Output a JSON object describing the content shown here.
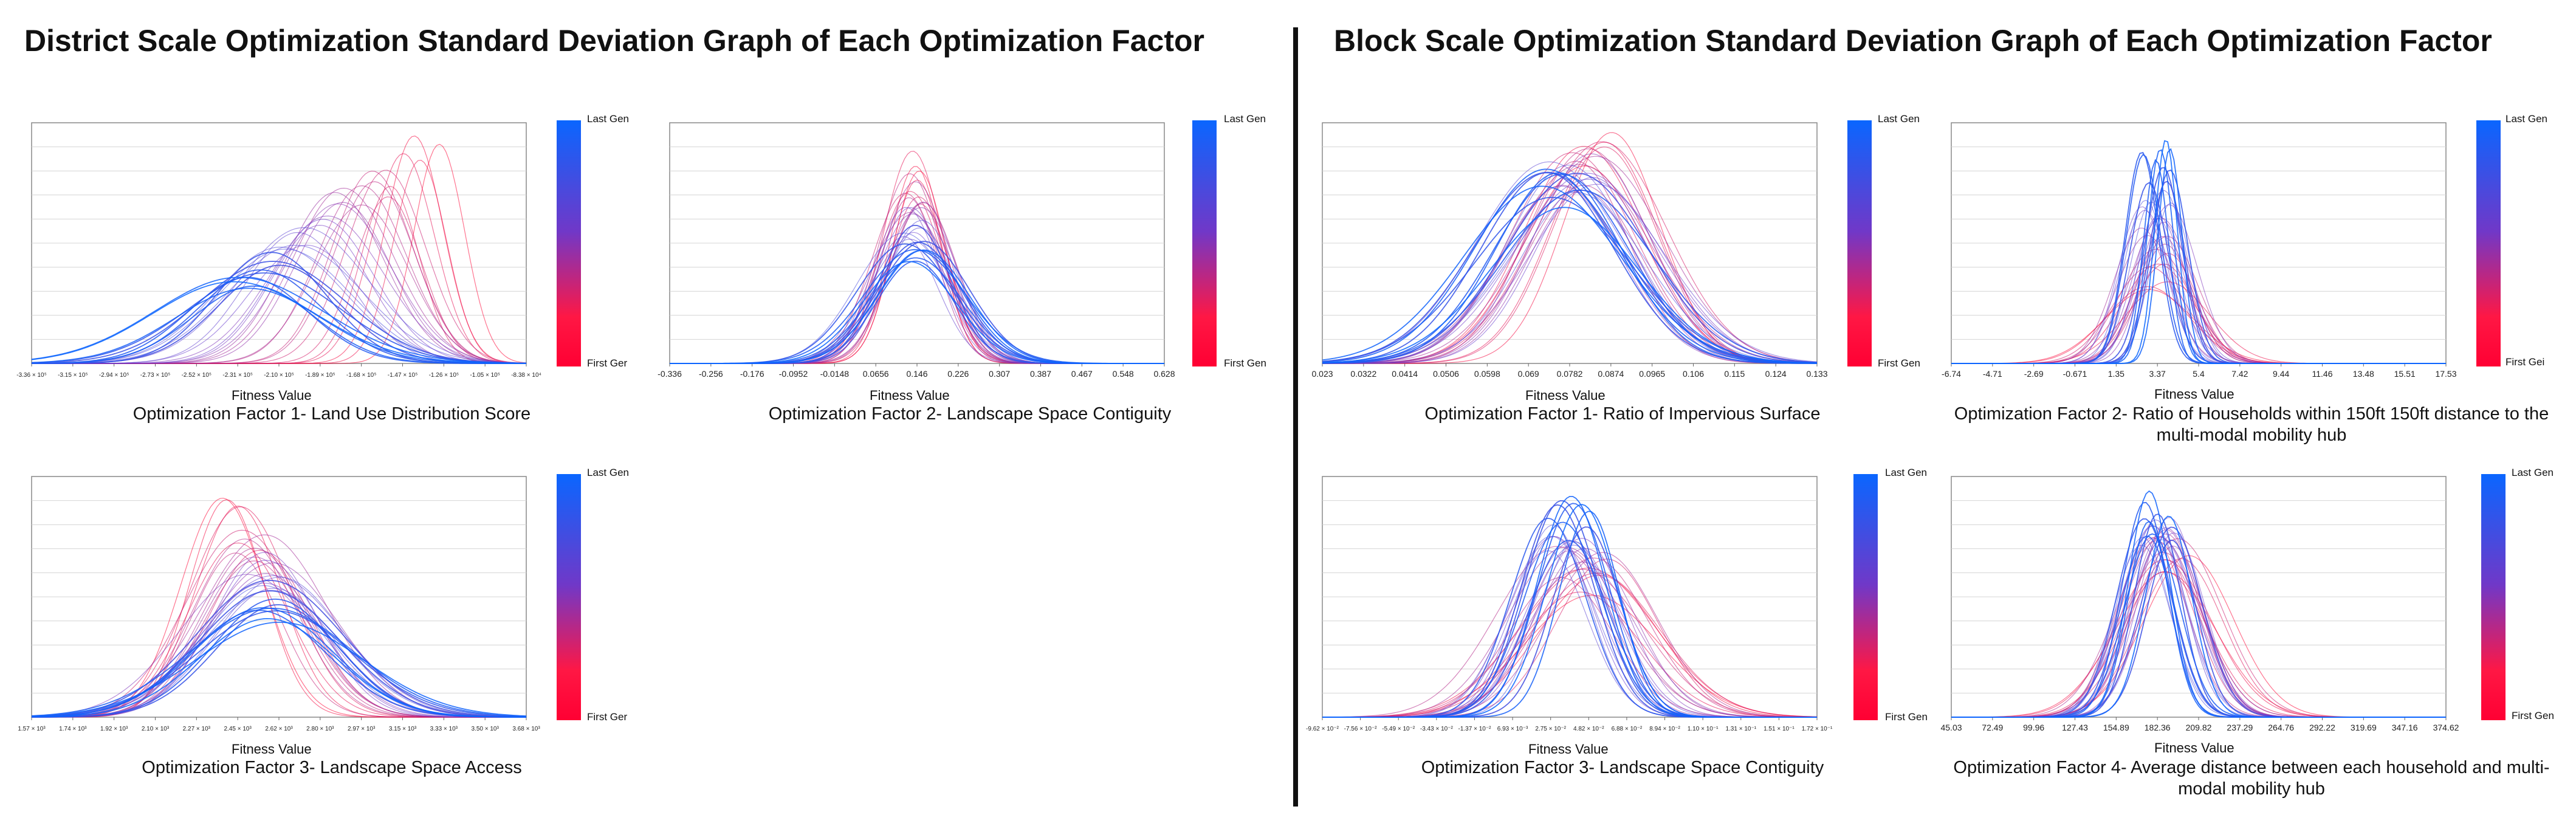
{
  "titles": {
    "left": "District Scale Optimization Standard Deviation Graph of Each Optimization Factor",
    "right": "Block Scale Optimization Standard Deviation Graph of Each Optimization Factor"
  },
  "colorbar": {
    "top": "Last Gen",
    "bottom": "First Gen",
    "bottom_cut": "First Ger",
    "bottom_cut2": "First Gei",
    "colors": [
      "#0a66ff",
      "#7038c8",
      "#ff0033"
    ]
  },
  "chart_data": [
    {
      "type": "line",
      "id": "d1",
      "caption": "Optimization Factor 1- Land Use Distribution Score",
      "xlabel": "Fitness Value",
      "xticks": [
        "-3.36 × 10⁵",
        "-3.15 × 10⁵",
        "-2.94 × 10⁵",
        "-2.73 × 10⁵",
        "-2.52 × 10⁵",
        "-2.31 × 10⁵",
        "-2.10 × 10⁵",
        "-1.89 × 10⁵",
        "-1.68 × 10⁵",
        "-1.47 × 10⁵",
        "-1.26 × 10⁵",
        "-1.05 × 10⁵",
        "-8.38 × 10⁴"
      ],
      "xlim": [
        -3.36,
        -0.838
      ],
      "series_summary": "Normal-distribution density curves per generation; first gen (red) peaked near -1.2e5, last gen (blue) centered near -2.3e5 with wide spread.",
      "gen_means": [
        -1.28,
        -2.3
      ],
      "gen_sds": [
        0.12,
        0.38
      ],
      "gen_peaks": [
        1.0,
        0.35
      ]
    },
    {
      "type": "line",
      "id": "d2",
      "caption": "Optimization Factor 2- Landscape Space Contiguity",
      "xlabel": "Fitness Value",
      "xticks": [
        "-0.336",
        "-0.256",
        "-0.176",
        "-0.0952",
        "-0.0148",
        "0.0656",
        "0.146",
        "0.226",
        "0.307",
        "0.387",
        "0.467",
        "0.548",
        "0.628"
      ],
      "xlim": [
        -0.336,
        0.628
      ],
      "gen_means": [
        0.14,
        0.14
      ],
      "gen_sds": [
        0.05,
        0.09
      ],
      "gen_peaks": [
        0.97,
        0.46
      ]
    },
    {
      "type": "line",
      "id": "d3",
      "caption": "Optimization Factor 3- Landscape Space Access",
      "xlabel": "Fitness Value",
      "xticks": [
        "1.57 × 10³",
        "1.74 × 10³",
        "1.92 × 10³",
        "2.10 × 10³",
        "2.27 × 10³",
        "2.45 × 10³",
        "2.62 × 10³",
        "2.80 × 10³",
        "2.97 × 10³",
        "3.15 × 10³",
        "3.33 × 10³",
        "3.50 × 10³",
        "3.68 × 10³"
      ],
      "xlim": [
        1.57,
        3.68
      ],
      "gen_means": [
        2.45,
        2.6
      ],
      "gen_sds": [
        0.18,
        0.32
      ],
      "gen_peaks": [
        0.97,
        0.47
      ]
    },
    {
      "type": "line",
      "id": "b1",
      "caption": "Optimization Factor 1- Ratio of Impervious Surface",
      "xlabel": "Fitness Value",
      "xticks": [
        "0.023",
        "0.0322",
        "0.0414",
        "0.0506",
        "0.0598",
        "0.069",
        "0.0782",
        "0.0874",
        "0.0965",
        "0.106",
        "0.115",
        "0.124",
        "0.133"
      ],
      "xlim": [
        0.023,
        0.133
      ],
      "gen_means": [
        0.086,
        0.075
      ],
      "gen_sds": [
        0.012,
        0.016
      ],
      "gen_peaks": [
        0.97,
        0.8
      ]
    },
    {
      "type": "line",
      "id": "b2",
      "caption": "Optimization Factor 2- Ratio of Households within 150ft 150ft distance to the multi-modal mobility hub",
      "xlabel": "Fitness Value",
      "xticks": [
        "-6.74",
        "-4.71",
        "-2.69",
        "-0.671",
        "1.35",
        "3.37",
        "5.4",
        "7.42",
        "9.44",
        "11.46",
        "13.48",
        "15.51",
        "17.53"
      ],
      "xlim": [
        -6.74,
        17.53
      ],
      "gen_means": [
        3.3,
        3.37
      ],
      "gen_sds": [
        2.0,
        0.6
      ],
      "gen_peaks": [
        0.32,
        0.97
      ]
    },
    {
      "type": "line",
      "id": "b3",
      "caption": "Optimization Factor 3- Landscape Space Contiguity",
      "xlabel": "Fitness Value",
      "xticks": [
        "-9.62 × 10⁻²",
        "-7.56 × 10⁻²",
        "-5.49 × 10⁻²",
        "-3.43 × 10⁻²",
        "-1.37 × 10⁻²",
        "6.93 × 10⁻³",
        "2.75 × 10⁻²",
        "4.82 × 10⁻²",
        "6.88 × 10⁻²",
        "8.94 × 10⁻²",
        "1.10 × 10⁻¹",
        "1.31 × 10⁻¹",
        "1.51 × 10⁻¹",
        "1.72 × 10⁻¹"
      ],
      "xlim": [
        -9.62,
        17.2
      ],
      "gen_means": [
        4.8,
        3.5
      ],
      "gen_sds": [
        3.5,
        1.7
      ],
      "gen_peaks": [
        0.58,
        0.97
      ]
    },
    {
      "type": "line",
      "id": "b4",
      "caption": "Optimization Factor 4- Average distance between each household and multi-modal mobility hub",
      "xlabel": "Fitness Value",
      "xticks": [
        "45.03",
        "72.49",
        "99.96",
        "127.43",
        "154.89",
        "182.36",
        "209.82",
        "237.29",
        "264.76",
        "292.22",
        "319.69",
        "347.16",
        "374.62"
      ],
      "xlim": [
        45.03,
        374.62
      ],
      "gen_means": [
        195,
        180
      ],
      "gen_sds": [
        30,
        15
      ],
      "gen_peaks": [
        0.68,
        0.97
      ]
    }
  ]
}
